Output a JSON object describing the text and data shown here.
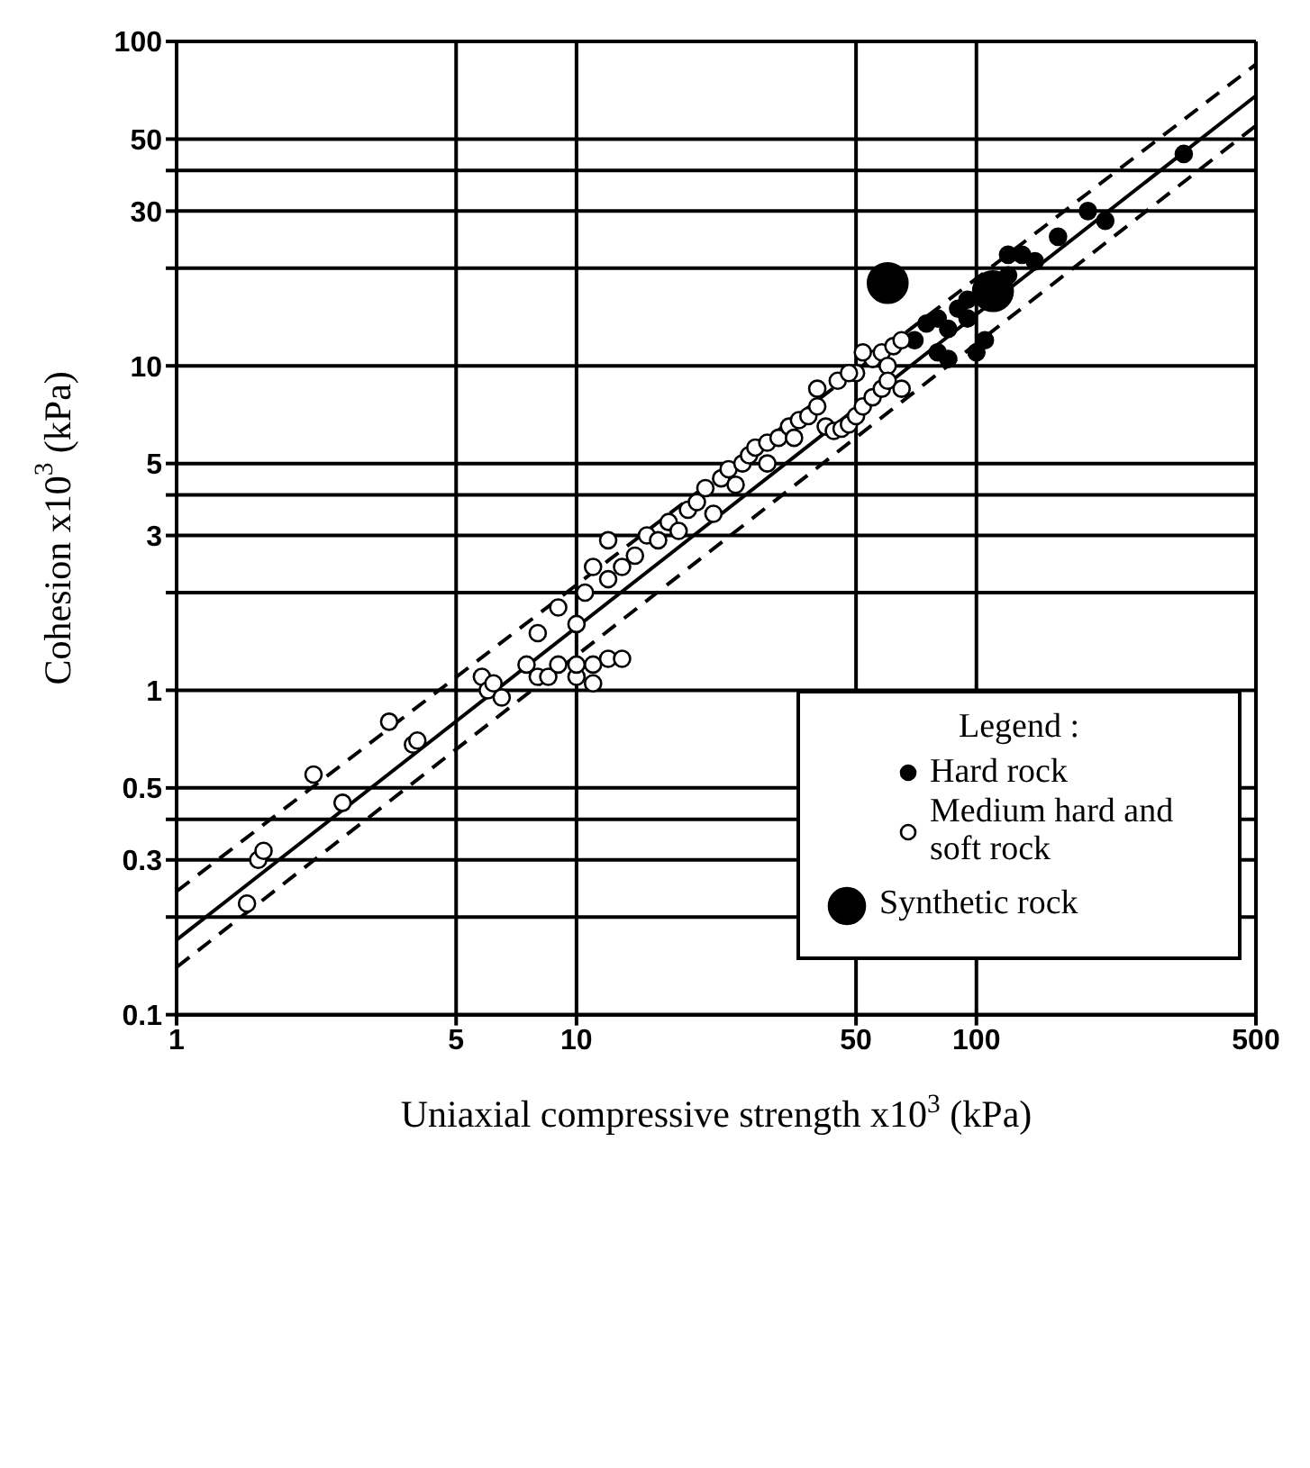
{
  "chart_data": {
    "type": "scatter",
    "xlabel": "Uniaxial compressive strength  x10$^{3}$  (kPa)",
    "ylabel": "Cohesion x10$^{3}$  (kPa)",
    "legend_title": "Legend :",
    "log": "xy",
    "grid": true,
    "legend": "bottom right",
    "marker": "circle",
    "xlim": [
      1,
      500
    ],
    "xticks": [
      1,
      5,
      10,
      50,
      100,
      500
    ],
    "ylim": [
      0.1,
      100
    ],
    "yticks": [
      0.1,
      {
        "value": 0.2,
        "label": null
      },
      0.3,
      {
        "value": 0.4,
        "label": null
      },
      0.5,
      1,
      {
        "value": 2,
        "label": null
      },
      3,
      {
        "value": 4,
        "label": null
      },
      5,
      10,
      {
        "value": 20,
        "label": null
      },
      30,
      {
        "value": 40,
        "label": null
      },
      50,
      100
    ],
    "series": [
      {
        "name": "Hard rock",
        "color": "#000000",
        "x": [
          70,
          75,
          80,
          85,
          90,
          95,
          100,
          105,
          120,
          80,
          85,
          100,
          130,
          140,
          120,
          160,
          190,
          210,
          330,
          105,
          95
        ],
        "values": [
          12,
          13.5,
          14,
          13,
          15,
          16,
          null,
          null,
          19,
          11,
          10.5,
          11,
          22,
          21,
          22,
          25,
          30,
          28,
          45,
          12,
          14
        ]
      },
      {
        "name": "Medium hard and soft rock",
        "color": "#ffffff",
        "x": [
          1.5,
          1.6,
          1.65,
          2.2,
          2.6,
          3.4,
          3.9,
          4,
          5.8,
          6,
          6.5,
          6.2,
          7.5,
          8,
          8.5,
          9,
          10,
          11,
          12,
          13,
          10,
          11,
          8,
          9,
          10,
          10.5,
          12,
          11,
          12,
          13,
          14,
          15,
          16,
          17,
          19,
          20,
          21,
          23,
          24,
          26,
          27,
          28,
          30,
          32,
          34,
          36,
          38,
          40,
          42,
          44,
          46,
          48,
          50,
          52,
          55,
          40,
          45,
          50,
          55,
          58,
          60,
          62,
          65,
          52,
          48,
          58,
          35,
          30,
          25,
          22,
          18,
          60,
          65
        ],
        "values": [
          0.22,
          0.3,
          0.32,
          0.55,
          0.45,
          0.8,
          0.68,
          0.7,
          1.1,
          1.0,
          0.95,
          1.05,
          1.2,
          1.1,
          1.1,
          1.2,
          1.1,
          1.2,
          1.25,
          1.25,
          1.2,
          1.05,
          1.5,
          1.8,
          1.6,
          2.0,
          2.2,
          2.4,
          2.9,
          2.4,
          2.6,
          3.0,
          2.9,
          3.3,
          3.6,
          3.8,
          4.2,
          4.5,
          4.8,
          5.0,
          5.3,
          5.6,
          5.8,
          6.0,
          6.5,
          6.8,
          7.0,
          7.5,
          6.5,
          6.3,
          6.4,
          6.6,
          7.0,
          7.5,
          8.0,
          8.5,
          9.0,
          9.5,
          10.5,
          11,
          10,
          11.5,
          12,
          11,
          9.5,
          8.5,
          6.0,
          5.0,
          4.3,
          3.5,
          3.1,
          9,
          8.5
        ]
      },
      {
        "name": "Synthetic rock",
        "type": "bubble",
        "color": "#000000",
        "x": [
          60,
          110
        ],
        "values": [
          18,
          17
        ],
        "sizes": [
          1,
          1
        ]
      },
      {
        "type": "line",
        "color": "#000000",
        "line_style": "solid",
        "marker": "none",
        "x": [
          1,
          500
        ],
        "values": [
          0.17,
          68
        ]
      },
      {
        "type": "line",
        "color": "#000000",
        "line_style": "dashed",
        "marker": "none",
        "x": [
          1,
          500
        ],
        "values": [
          0.24,
          85
        ]
      },
      {
        "type": "line",
        "color": "#000000",
        "line_style": "dashed",
        "marker": "none",
        "x": [
          1,
          500
        ],
        "values": [
          0.14,
          55
        ]
      }
    ]
  }
}
